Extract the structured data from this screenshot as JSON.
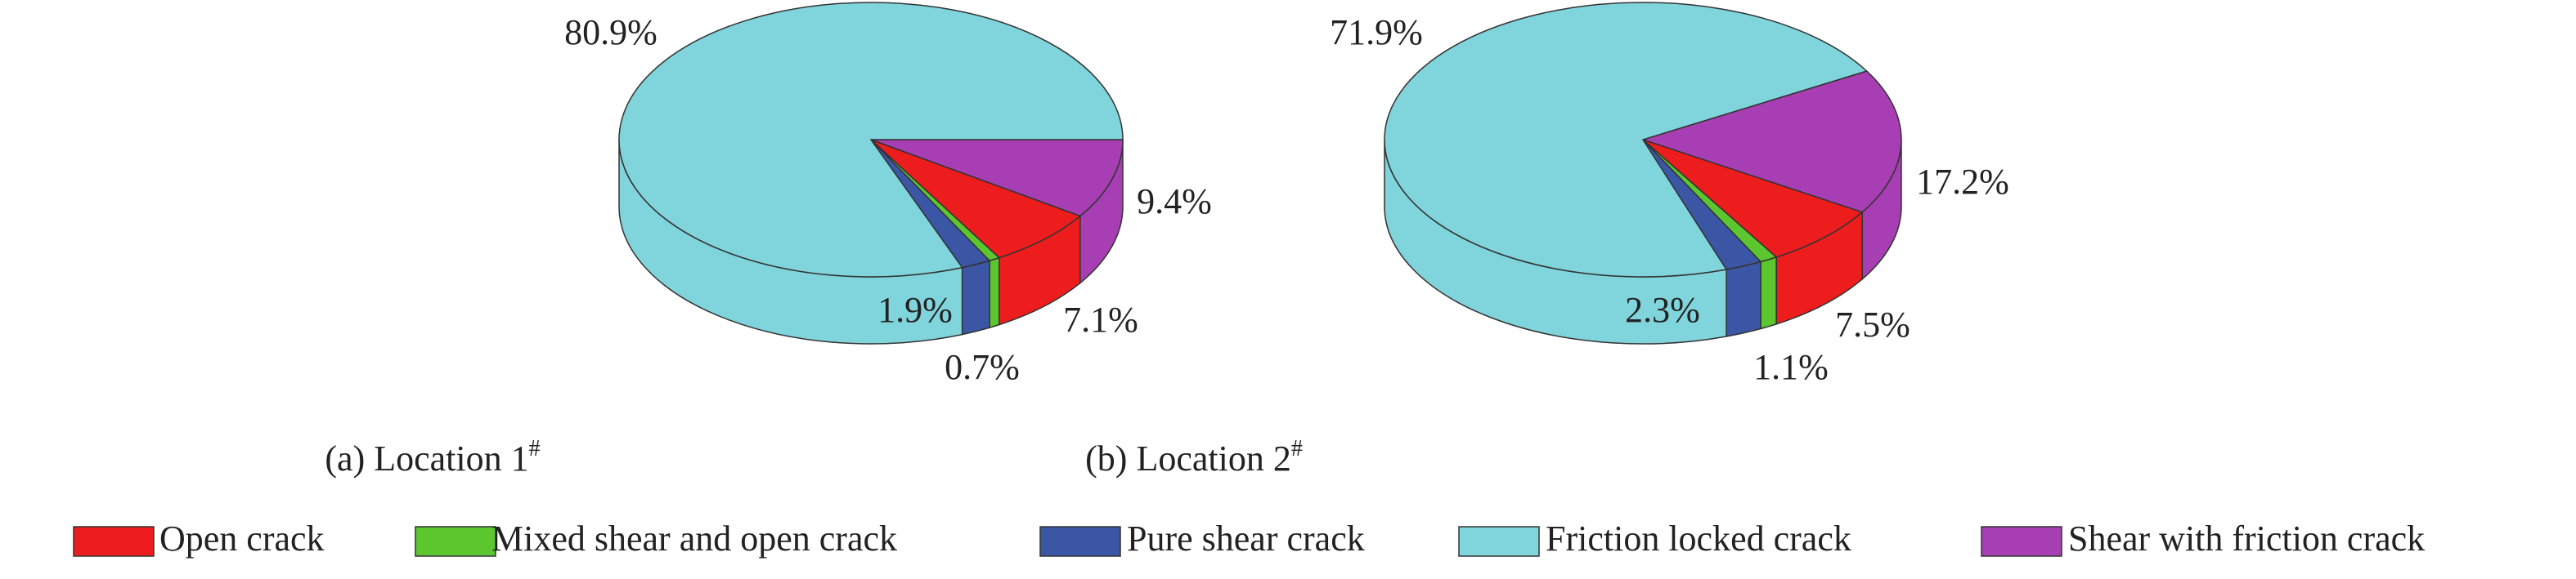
{
  "chart_data": [
    {
      "type": "pie",
      "caption": "(a) Location 1",
      "caption_sup": "#",
      "categories": [
        "Shear with friction crack",
        "Open crack",
        "Mixed shear and open crack",
        "Pure shear crack",
        "Friction locked crack"
      ],
      "values": [
        9.4,
        7.1,
        0.7,
        1.9,
        80.9
      ],
      "value_labels": [
        "9.4%",
        "7.1%",
        "0.7%",
        "1.9%",
        "80.9%"
      ],
      "colors": [
        "#a83eb3",
        "#ee1d1d",
        "#5cc62f",
        "#3b56a5",
        "#80d4dc"
      ]
    },
    {
      "type": "pie",
      "caption": "(b) Location 2",
      "caption_sup": "#",
      "categories": [
        "Shear with friction crack",
        "Open crack",
        "Mixed shear and open crack",
        "Pure shear crack",
        "Friction locked crack"
      ],
      "values": [
        17.2,
        7.5,
        1.1,
        2.3,
        71.9
      ],
      "value_labels": [
        "17.2%",
        "7.5%",
        "1.1%",
        "2.3%",
        "71.9%"
      ],
      "colors": [
        "#a83eb3",
        "#ee1d1d",
        "#5cc62f",
        "#3b56a5",
        "#80d4dc"
      ]
    }
  ]
}
